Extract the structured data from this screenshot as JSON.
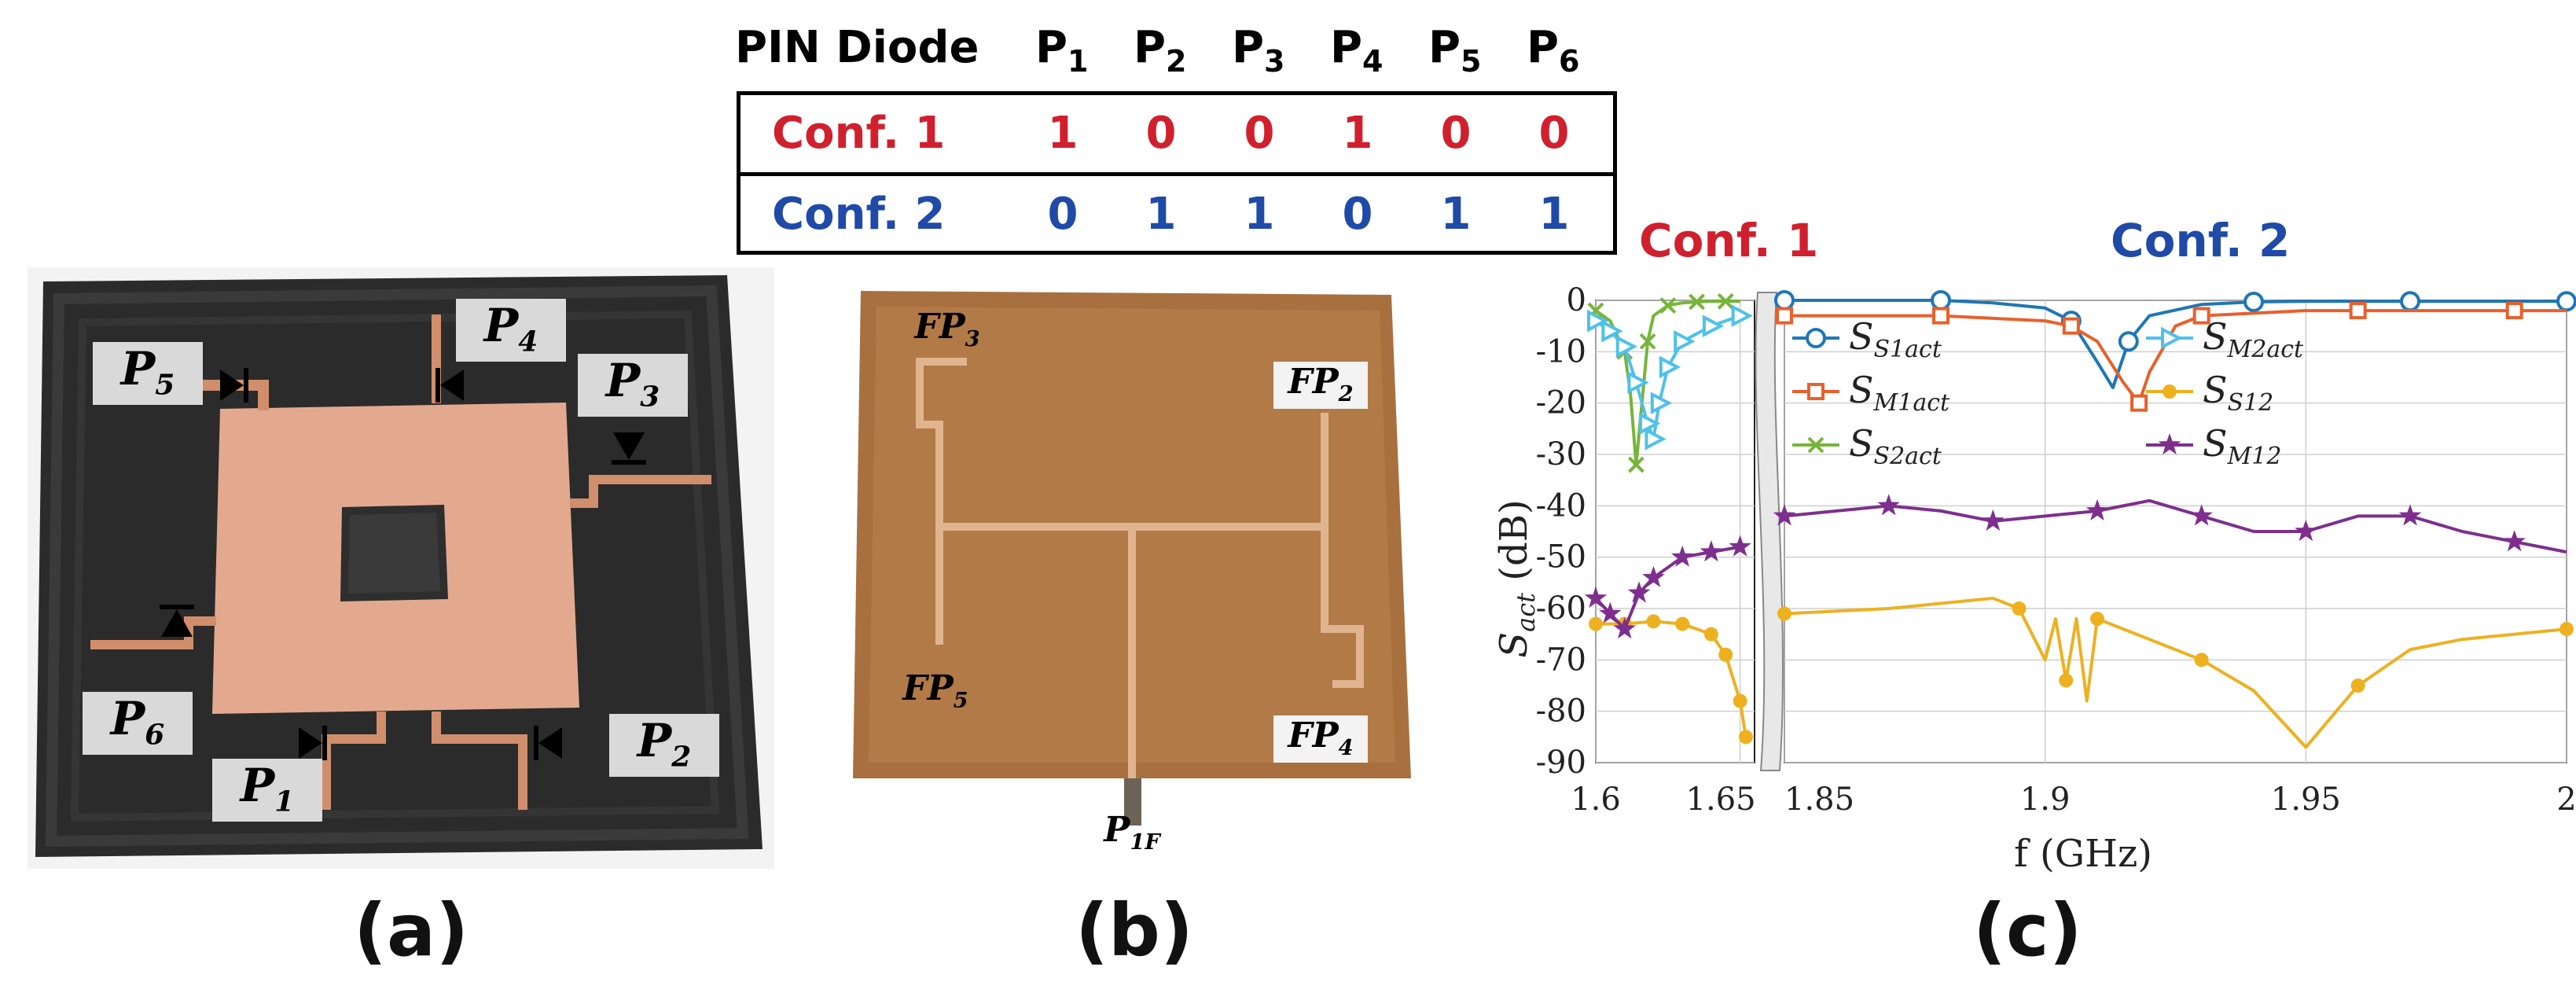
{
  "table": {
    "header_label": "PIN Diode",
    "columns": [
      {
        "base": "P",
        "sub": "1"
      },
      {
        "base": "P",
        "sub": "2"
      },
      {
        "base": "P",
        "sub": "3"
      },
      {
        "base": "P",
        "sub": "4"
      },
      {
        "base": "P",
        "sub": "5"
      },
      {
        "base": "P",
        "sub": "6"
      }
    ],
    "rows": [
      {
        "label": "Conf. 1",
        "color": "#d0202e",
        "values": [
          "1",
          "0",
          "0",
          "1",
          "0",
          "0"
        ]
      },
      {
        "label": "Conf. 2",
        "color": "#1f4aa8",
        "values": [
          "0",
          "1",
          "1",
          "0",
          "1",
          "1"
        ]
      }
    ]
  },
  "photo_a": {
    "labels": [
      {
        "base": "P",
        "sub": "5"
      },
      {
        "base": "P",
        "sub": "4"
      },
      {
        "base": "P",
        "sub": "3"
      },
      {
        "base": "P",
        "sub": "6"
      },
      {
        "base": "P",
        "sub": "1"
      },
      {
        "base": "P",
        "sub": "2"
      }
    ]
  },
  "photo_b": {
    "labels": [
      {
        "base": "FP",
        "sub": "3"
      },
      {
        "base": "FP",
        "sub": "2"
      },
      {
        "base": "FP",
        "sub": "5"
      },
      {
        "base": "FP",
        "sub": "4"
      },
      {
        "base": "P",
        "sub": "1F"
      }
    ]
  },
  "captions": {
    "a": "(a)",
    "b": "(b)",
    "c": "(c)"
  },
  "chart_titles": {
    "left": "Conf. 1",
    "right": "Conf. 2",
    "left_color": "#d0202e",
    "right_color": "#1f4aa8"
  },
  "chart_data": {
    "type": "line",
    "ylabel_base": "S",
    "ylabel_sub": "act",
    "ylabel_unit": " (dB)",
    "xlabel": "f (GHz)",
    "ylim": [
      -90,
      0
    ],
    "yticks": [
      "0",
      "-10",
      "-20",
      "-30",
      "-40",
      "-50",
      "-60",
      "-70",
      "-80",
      "-90"
    ],
    "grid": true,
    "left_segment": {
      "xlim": [
        1.6,
        1.655
      ],
      "xticks": [
        "1.6",
        "1.65"
      ],
      "xtick_values": [
        1.6,
        1.65
      ]
    },
    "right_segment": {
      "xlim": [
        1.85,
        2.0
      ],
      "xticks": [
        "1.85",
        "1.9",
        "1.95",
        "2"
      ],
      "xtick_values": [
        1.85,
        1.9,
        1.95,
        2.0
      ]
    },
    "series": [
      {
        "name_base": "S",
        "name_sub": "S1act",
        "color": "#1f77b4",
        "marker": "circle",
        "segment": "right",
        "x": [
          1.85,
          1.86,
          1.87,
          1.88,
          1.89,
          1.9,
          1.905,
          1.91,
          1.913,
          1.916,
          1.92,
          1.93,
          1.94,
          1.95,
          1.96,
          1.97,
          1.98,
          1.99,
          2.0
        ],
        "y": [
          0,
          0,
          0,
          0,
          -0.5,
          -1.5,
          -4,
          -12,
          -17,
          -8,
          -3,
          -0.8,
          -0.3,
          -0.2,
          -0.2,
          -0.2,
          -0.2,
          -0.2,
          -0.2
        ]
      },
      {
        "name_base": "S",
        "name_sub": "M1act",
        "color": "#e8602c",
        "marker": "square",
        "segment": "right",
        "x": [
          1.85,
          1.86,
          1.87,
          1.88,
          1.89,
          1.9,
          1.905,
          1.91,
          1.915,
          1.918,
          1.92,
          1.925,
          1.93,
          1.94,
          1.95,
          1.96,
          1.97,
          1.98,
          1.99,
          2.0
        ],
        "y": [
          -3,
          -3,
          -3,
          -3,
          -3.5,
          -4,
          -5,
          -8,
          -16,
          -20,
          -14,
          -5,
          -3,
          -2.5,
          -2,
          -2,
          -2,
          -2,
          -2,
          -2
        ]
      },
      {
        "name_base": "S",
        "name_sub": "S2act",
        "color": "#77b53a",
        "marker": "x",
        "segment": "left",
        "x": [
          1.6,
          1.605,
          1.61,
          1.612,
          1.614,
          1.616,
          1.618,
          1.62,
          1.625,
          1.63,
          1.635,
          1.64,
          1.645,
          1.65
        ],
        "y": [
          -2,
          -4,
          -10,
          -18,
          -32,
          -20,
          -8,
          -3,
          -1,
          -0.5,
          -0.3,
          -0.2,
          -0.2,
          -0.2
        ]
      },
      {
        "name_base": "S",
        "name_sub": "M2act",
        "color": "#4fc1e9",
        "marker": "triangle",
        "segment": "left",
        "x": [
          1.6,
          1.605,
          1.61,
          1.614,
          1.618,
          1.62,
          1.622,
          1.625,
          1.63,
          1.64,
          1.65
        ],
        "y": [
          -4,
          -6,
          -9,
          -16,
          -24,
          -27,
          -20,
          -13,
          -8,
          -5,
          -3
        ]
      },
      {
        "name_base": "S",
        "name_sub": "S12",
        "color": "#edb120",
        "marker": "dot",
        "segment": "both",
        "x": [
          1.6,
          1.61,
          1.62,
          1.63,
          1.64,
          1.645,
          1.65,
          1.652,
          1.85,
          1.87,
          1.89,
          1.895,
          1.9,
          1.902,
          1.904,
          1.906,
          1.908,
          1.91,
          1.915,
          1.92,
          1.93,
          1.94,
          1.95,
          1.96,
          1.97,
          1.98,
          2.0
        ],
        "y": [
          -63,
          -63,
          -62.5,
          -63,
          -65,
          -69,
          -78,
          -85,
          -61,
          -60,
          -58,
          -60,
          -70,
          -62,
          -74,
          -62,
          -78,
          -62,
          -64,
          -66,
          -70,
          -76,
          -87,
          -75,
          -68,
          -66,
          -64
        ]
      },
      {
        "name_base": "S",
        "name_sub": "M12",
        "color": "#7e2f8e",
        "marker": "star",
        "segment": "both",
        "x": [
          1.6,
          1.605,
          1.61,
          1.615,
          1.62,
          1.63,
          1.64,
          1.65,
          1.85,
          1.86,
          1.87,
          1.88,
          1.89,
          1.9,
          1.91,
          1.92,
          1.93,
          1.94,
          1.95,
          1.96,
          1.97,
          1.98,
          1.99,
          2.0
        ],
        "y": [
          -58,
          -61,
          -64,
          -57,
          -54,
          -50,
          -49,
          -48,
          -42,
          -41,
          -40,
          -41,
          -43,
          -42,
          -41,
          -39,
          -42,
          -45,
          -45,
          -42,
          -42,
          -45,
          -47,
          -49
        ]
      }
    ]
  }
}
